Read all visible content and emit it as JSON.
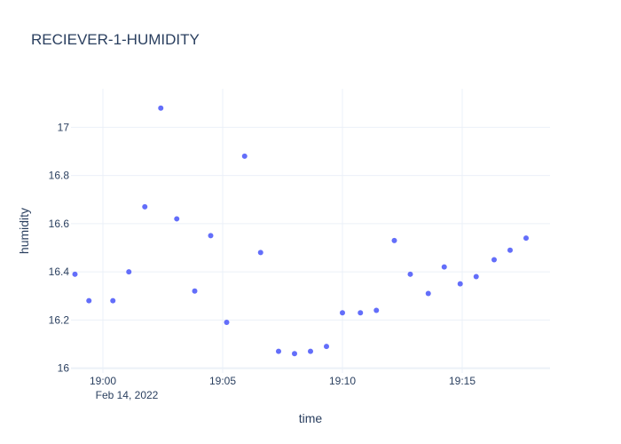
{
  "chart_data": {
    "type": "scatter",
    "title": "RECIEVER-1-HUMIDITY",
    "xlabel": "time",
    "ylabel": "humidity",
    "x_date_label": "Feb 14, 2022",
    "x_range": [
      "18:58:40",
      "19:18:40"
    ],
    "x_ticks": [
      "19:00",
      "19:05",
      "19:10",
      "19:15"
    ],
    "ylim": [
      15.98,
      17.16
    ],
    "y_ticks": [
      16,
      16.2,
      16.4,
      16.6,
      16.8,
      17
    ],
    "y_tick_labels": [
      "16",
      "16.2",
      "16.4",
      "16.6",
      "16.8",
      "17"
    ],
    "grid": true,
    "marker_color": "#636efa",
    "series": [
      {
        "x": [
          "18:58:50",
          "18:59:25",
          "19:00:25",
          "19:01:05",
          "19:01:45",
          "19:02:25",
          "19:03:05",
          "19:03:50",
          "19:04:30",
          "19:05:10",
          "19:05:55",
          "19:06:35",
          "19:07:20",
          "19:08:00",
          "19:08:40",
          "19:09:20",
          "19:10:00",
          "19:10:45",
          "19:11:25",
          "19:12:10",
          "19:12:50",
          "19:13:35",
          "19:14:15",
          "19:14:55",
          "19:15:35",
          "19:16:20",
          "19:17:00",
          "19:17:40"
        ],
        "y": [
          16.39,
          16.28,
          16.28,
          16.4,
          16.67,
          17.08,
          16.62,
          16.32,
          16.55,
          16.19,
          16.88,
          16.48,
          16.07,
          16.06,
          16.07,
          16.09,
          16.23,
          16.23,
          16.24,
          16.53,
          16.39,
          16.31,
          16.42,
          16.35,
          16.38,
          16.45,
          16.49,
          16.54
        ]
      }
    ]
  }
}
